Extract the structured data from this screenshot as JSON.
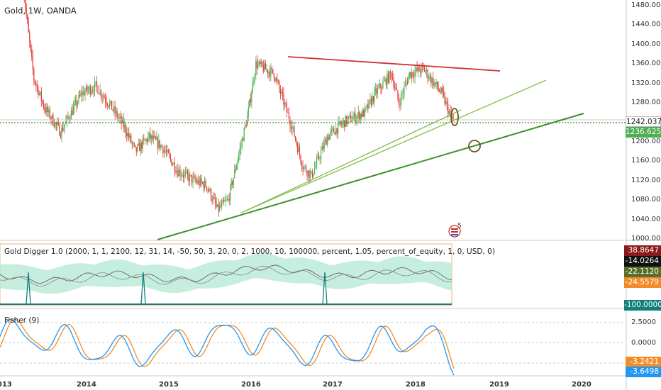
{
  "symbol_title": "Gold, 1W, OANDA",
  "price_axis": [
    "1480.000",
    "1440.000",
    "1400.000",
    "1360.000",
    "1320.000",
    "1280.000",
    "1200.000",
    "1160.000",
    "1120.000",
    "1080.000",
    "1040.000",
    "1000.000"
  ],
  "price_tags": {
    "last": {
      "text": "1242.037",
      "color": "#ffffff",
      "bg": "#ffffff",
      "fg": "#222222"
    },
    "level": {
      "text": "1236.625",
      "color": "#4caf50"
    }
  },
  "indicator": {
    "label": "Gold Digger 1.0 (2000, 1, 1, 2100, 12, 31, 14, -50, 50, 3, 20, 0, 2, 1000, 10, 100000, percent, 1.05, percent_of_equity, 1, 0, USD, 0)",
    "values": [
      {
        "text": "38.8647",
        "bg": "#8b1a1a"
      },
      {
        "text": "-14.0264",
        "bg": "#111111"
      },
      {
        "text": "-22.1120",
        "bg": "#5a6e2a"
      },
      {
        "text": "-24.5579",
        "bg": "#f28c28"
      },
      {
        "text": "-100.0000",
        "bg": "#127f7f"
      }
    ]
  },
  "fisher": {
    "label": "Fisher (9)",
    "axis": [
      "2.5000",
      "0.0000"
    ],
    "values": [
      {
        "text": "-3.2421",
        "bg": "#f28c28"
      },
      {
        "text": "-3.6498",
        "bg": "#2196f3"
      }
    ]
  },
  "time_axis": [
    "013",
    "2014",
    "2015",
    "2016",
    "2017",
    "2018",
    "2019",
    "2020"
  ],
  "badge": {
    "number": "5"
  },
  "colors": {
    "up": "#26a69a",
    "upBar": "#4caf50",
    "down": "#e53935",
    "resistance": "#d32f2f",
    "support": "#3f8f2f",
    "fisherA": "#f28c28",
    "fisherB": "#2196f3"
  },
  "chart_data": {
    "type": "candlestick",
    "instrument": "Gold",
    "interval": "1W",
    "source": "OANDA",
    "price_range": [
      1000,
      1480
    ],
    "last_price": 1242.037,
    "horizontal_level": 1236.625,
    "indicator_values": [
      38.8647,
      -14.0264,
      -22.112,
      -24.5579,
      -100.0
    ],
    "fisher_values": [
      -3.2421,
      -3.6498
    ]
  }
}
